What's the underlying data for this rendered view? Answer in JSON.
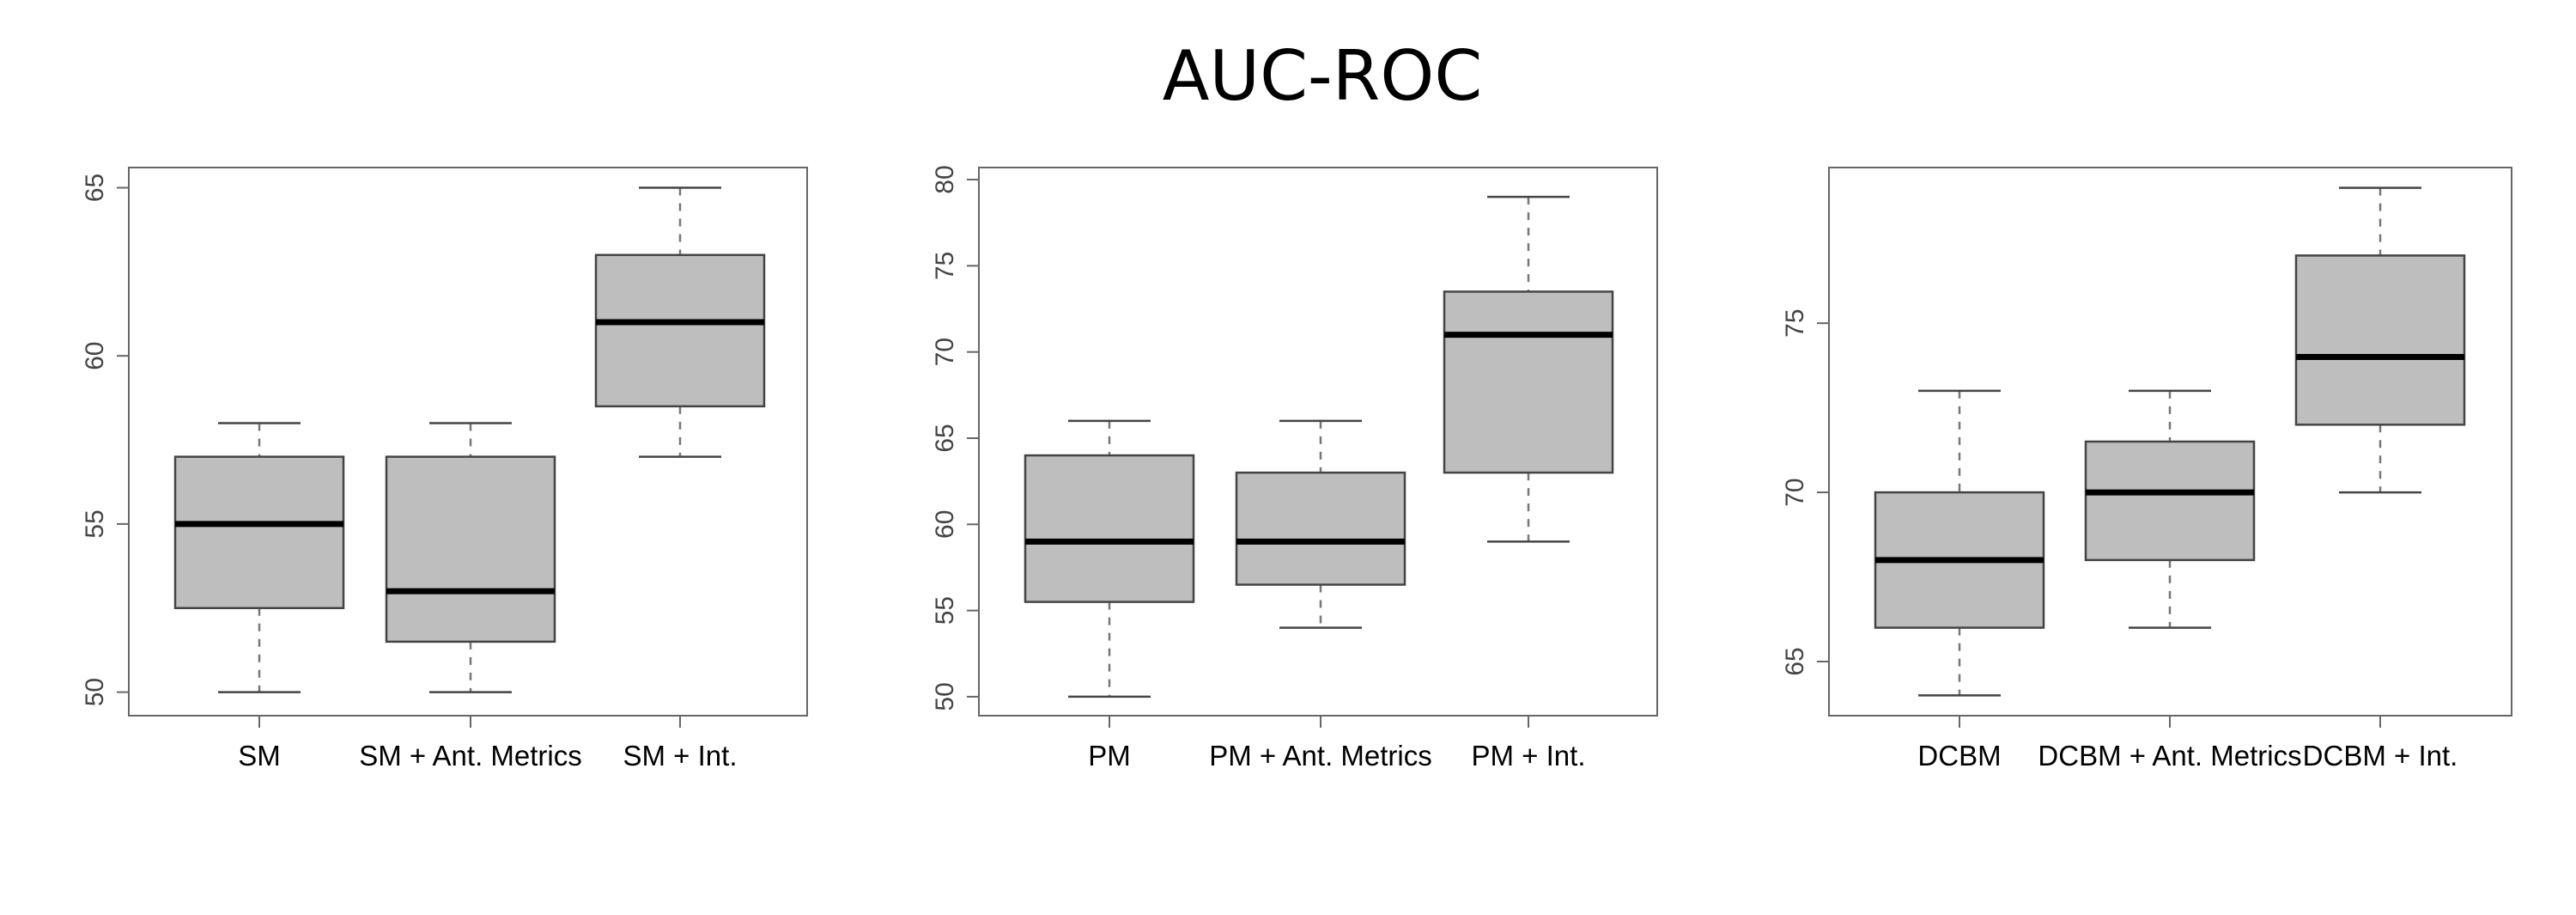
{
  "title": "AUC-ROC",
  "colors": {
    "box_fill": "#bebebe",
    "box_stroke": "#444444",
    "median": "#000000",
    "whisker": "#777777",
    "frame": "#666666"
  },
  "chart_data": [
    {
      "type": "boxplot",
      "categories": [
        "SM",
        "SM + Ant. Metrics",
        "SM + Int."
      ],
      "ylim": [
        49.3,
        65.6
      ],
      "yticks": [
        50,
        55,
        60,
        65
      ],
      "boxes": [
        {
          "min": 50,
          "q1": 52.5,
          "median": 55,
          "q3": 57,
          "max": 58
        },
        {
          "min": 50,
          "q1": 51.5,
          "median": 53,
          "q3": 57,
          "max": 58
        },
        {
          "min": 57,
          "q1": 58.5,
          "median": 61,
          "q3": 63,
          "max": 65
        }
      ]
    },
    {
      "type": "boxplot",
      "categories": [
        "PM",
        "PM + Ant. Metrics",
        "PM + Int."
      ],
      "ylim": [
        48.9,
        80.7
      ],
      "yticks": [
        50,
        55,
        60,
        65,
        70,
        75,
        80
      ],
      "boxes": [
        {
          "min": 50,
          "q1": 55.5,
          "median": 59,
          "q3": 64,
          "max": 66
        },
        {
          "min": 54,
          "q1": 56.5,
          "median": 59,
          "q3": 63,
          "max": 66
        },
        {
          "min": 59,
          "q1": 63,
          "median": 71,
          "q3": 73.5,
          "max": 79
        }
      ]
    },
    {
      "type": "boxplot",
      "categories": [
        "DCBM",
        "DCBM + Ant. Metrics",
        "DCBM + Int."
      ],
      "ylim": [
        63.4,
        79.6
      ],
      "yticks": [
        65,
        70,
        75
      ],
      "boxes": [
        {
          "min": 64,
          "q1": 66,
          "median": 68,
          "q3": 70,
          "max": 73
        },
        {
          "min": 66,
          "q1": 68,
          "median": 70,
          "q3": 71.5,
          "max": 73
        },
        {
          "min": 70,
          "q1": 72,
          "median": 74,
          "q3": 77,
          "max": 79
        }
      ]
    }
  ]
}
